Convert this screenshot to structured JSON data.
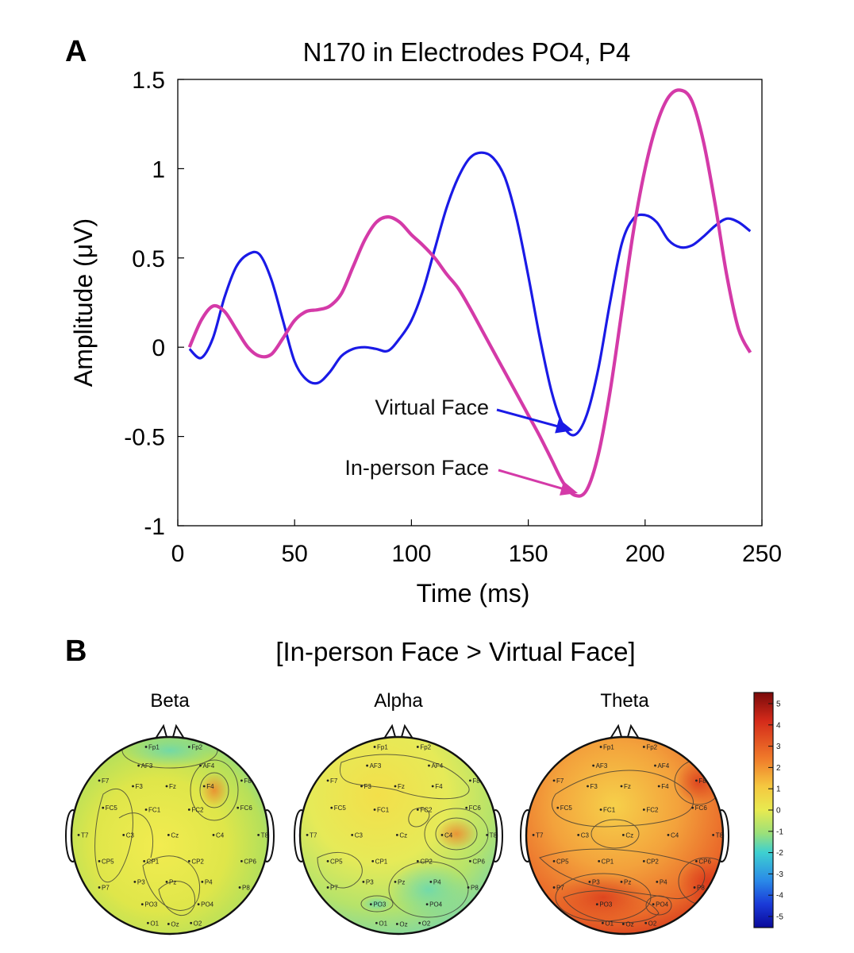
{
  "panel_a": {
    "label": "A",
    "chart_data": {
      "type": "line",
      "title": "N170 in Electrodes PO4, P4",
      "xlabel": "Time (ms)",
      "ylabel": "Amplitude (μV)",
      "xlim": [
        0,
        250
      ],
      "ylim": [
        -1,
        1.5
      ],
      "xticks": [
        "0",
        "50",
        "100",
        "150",
        "200",
        "250"
      ],
      "xtick_values": [
        0,
        50,
        100,
        150,
        200,
        250
      ],
      "yticks": [
        "-1",
        "-0.5",
        "0",
        "0.5",
        "1",
        "1.5"
      ],
      "ytick_values": [
        -1,
        -0.5,
        0,
        0.5,
        1,
        1.5
      ],
      "grid": false,
      "series": [
        {
          "name": "Virtual Face",
          "color": "#1a1ae6",
          "x": [
            5,
            10,
            15,
            20,
            25,
            30,
            35,
            40,
            45,
            50,
            55,
            60,
            65,
            70,
            75,
            80,
            85,
            90,
            95,
            100,
            105,
            110,
            115,
            120,
            125,
            130,
            135,
            140,
            145,
            150,
            155,
            160,
            165,
            170,
            175,
            180,
            185,
            190,
            195,
            200,
            205,
            210,
            215,
            220,
            225,
            230,
            235,
            240,
            245
          ],
          "values": [
            -0.01,
            -0.06,
            0.05,
            0.28,
            0.45,
            0.52,
            0.52,
            0.38,
            0.15,
            -0.08,
            -0.18,
            -0.2,
            -0.14,
            -0.05,
            -0.01,
            0.0,
            -0.01,
            -0.02,
            0.05,
            0.15,
            0.32,
            0.55,
            0.78,
            0.95,
            1.06,
            1.09,
            1.06,
            0.95,
            0.72,
            0.4,
            0.05,
            -0.25,
            -0.44,
            -0.49,
            -0.38,
            -0.12,
            0.25,
            0.58,
            0.72,
            0.74,
            0.7,
            0.6,
            0.56,
            0.57,
            0.62,
            0.68,
            0.72,
            0.7,
            0.65
          ]
        },
        {
          "name": "In-person Face",
          "color": "#d43aa8",
          "x": [
            5,
            10,
            15,
            20,
            25,
            30,
            35,
            40,
            45,
            50,
            55,
            60,
            65,
            70,
            75,
            80,
            85,
            90,
            95,
            100,
            105,
            110,
            115,
            120,
            125,
            130,
            135,
            140,
            145,
            150,
            155,
            160,
            165,
            170,
            175,
            180,
            185,
            190,
            195,
            200,
            205,
            210,
            215,
            220,
            225,
            230,
            235,
            240,
            245
          ],
          "values": [
            0.0,
            0.15,
            0.23,
            0.2,
            0.1,
            0.0,
            -0.05,
            -0.04,
            0.05,
            0.15,
            0.2,
            0.21,
            0.23,
            0.3,
            0.45,
            0.6,
            0.7,
            0.73,
            0.7,
            0.63,
            0.57,
            0.5,
            0.41,
            0.33,
            0.22,
            0.1,
            -0.02,
            -0.14,
            -0.26,
            -0.38,
            -0.5,
            -0.63,
            -0.76,
            -0.83,
            -0.8,
            -0.6,
            -0.25,
            0.2,
            0.65,
            1.0,
            1.25,
            1.4,
            1.44,
            1.38,
            1.15,
            0.8,
            0.4,
            0.1,
            -0.03
          ]
        }
      ],
      "annotations": [
        {
          "text": "Virtual Face",
          "color": "#1a1ae6",
          "target_x": 170,
          "target_y": -0.48
        },
        {
          "text": "In-person Face",
          "color": "#d43aa8",
          "target_x": 172,
          "target_y": -0.83
        }
      ]
    }
  },
  "panel_b": {
    "label": "B",
    "title": "[In-person Face > Virtual Face]",
    "maps": [
      {
        "name": "Beta",
        "base_color": "#dde34a"
      },
      {
        "name": "Alpha",
        "base_color": "#e8e85a"
      },
      {
        "name": "Theta",
        "base_color": "#f2a23c"
      }
    ],
    "electrodes": [
      "Fp1",
      "Fp2",
      "AF3",
      "AF4",
      "F7",
      "F3",
      "Fz",
      "F4",
      "F8",
      "FC5",
      "FC1",
      "FC2",
      "FC6",
      "T7",
      "C3",
      "Cz",
      "C4",
      "T8",
      "CP5",
      "CP1",
      "CP2",
      "CP6",
      "P7",
      "P3",
      "Pz",
      "P4",
      "P8",
      "PO3",
      "PO4",
      "O1",
      "Oz",
      "O2"
    ],
    "colorbar": {
      "ticks": [
        "5",
        "4",
        "3",
        "2",
        "1",
        "0",
        "-1",
        "-2",
        "-3",
        "-4",
        "-5"
      ],
      "colors": [
        "#7a0a0a",
        "#d42a1a",
        "#f07a2a",
        "#f5c840",
        "#e8ea50",
        "#9ae07a",
        "#3ed0d0",
        "#2a8ae8",
        "#1a3ad8",
        "#0a0a9a"
      ]
    }
  }
}
